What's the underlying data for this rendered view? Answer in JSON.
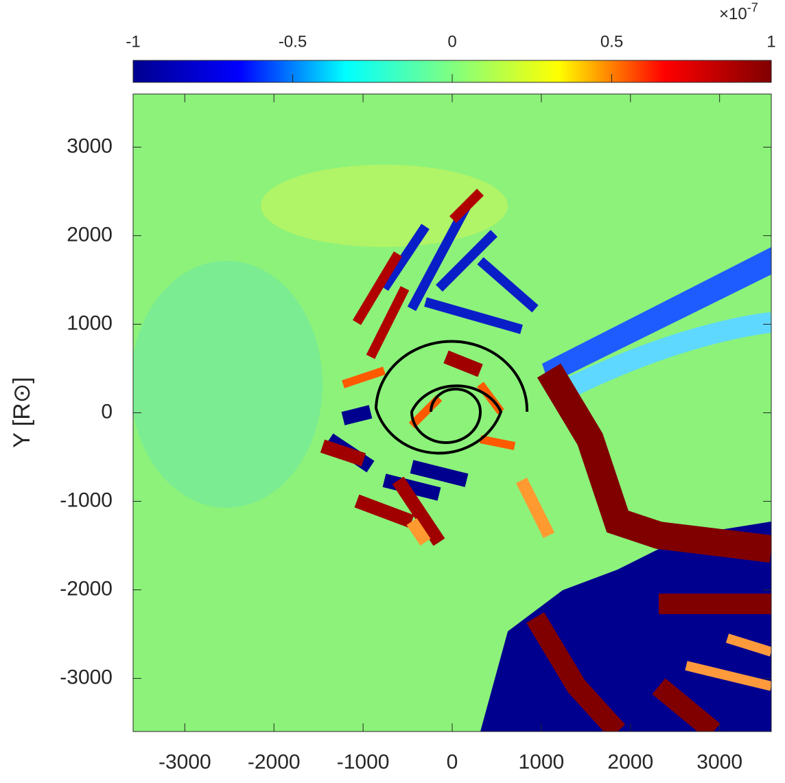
{
  "chart_data": {
    "type": "heatmap",
    "ylabel": "Y [R⊙]",
    "xlim": [
      -3580,
      3580
    ],
    "ylim": [
      -3600,
      3600
    ],
    "xticks": [
      -3000,
      -2000,
      -1000,
      0,
      1000,
      2000,
      3000
    ],
    "yticks": [
      3000,
      2000,
      1000,
      0,
      -1000,
      -2000,
      -3000
    ],
    "colorbar": {
      "lim": [
        -1,
        1
      ],
      "ticks": [
        -1,
        -0.5,
        0,
        0.5,
        1
      ],
      "multiplier_base": "×10",
      "multiplier_exponent": "-7",
      "colors": [
        "#00008f",
        "#0000ff",
        "#00ffff",
        "#80ff80",
        "#ffff00",
        "#ff0000",
        "#800000"
      ]
    }
  }
}
